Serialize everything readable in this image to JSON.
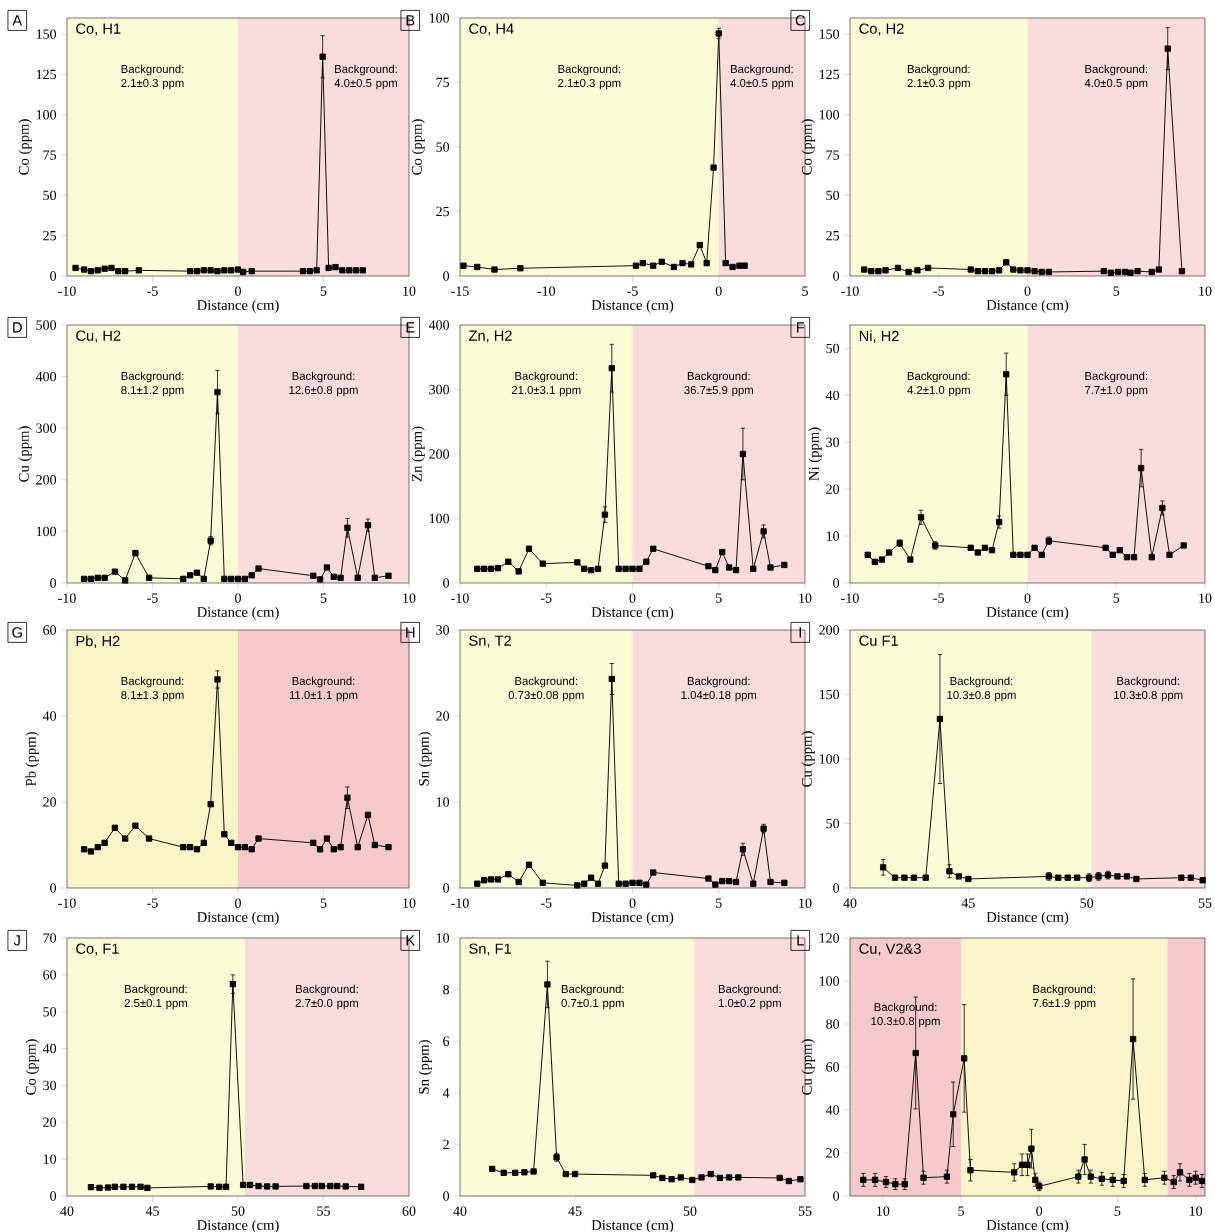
{
  "chart_data": [
    {
      "type": "line",
      "title": "Co, H1",
      "xlabel": "Distance (cm)",
      "ylabel": "Co (ppm)",
      "annotations": [
        "A"
      ],
      "color": "#000000",
      "marker": "square",
      "xlim": [
        -10,
        10
      ],
      "ylim": [
        0,
        160
      ],
      "xticks": [
        -10,
        -5,
        0,
        5,
        10
      ],
      "yticks": [
        0,
        25,
        50,
        75,
        100,
        125,
        150
      ],
      "bands": [
        {
          "axis": "x",
          "from": -10,
          "to": 0,
          "label": "Background: 2.1±0.3 ppm",
          "color": "#fdfbd6"
        },
        {
          "axis": "x",
          "from": 0,
          "to": 10,
          "label": "Background: 4.0±0.5 ppm",
          "color": "#fadcdd"
        }
      ],
      "x": [
        -9.5,
        -9,
        -8.6,
        -8.2,
        -7.8,
        -7.4,
        -7,
        -6.6,
        -5.8,
        -2.8,
        -2.4,
        -2,
        -1.6,
        -1.2,
        -0.8,
        -0.4,
        0,
        0.3,
        0.8,
        3.8,
        4.2,
        4.6,
        4.95,
        5.3,
        5.7,
        6.1,
        6.5,
        6.9,
        7.3
      ],
      "values": [
        5,
        4,
        3,
        3.5,
        4.5,
        5,
        3,
        3,
        3.5,
        3,
        3,
        3.5,
        3.5,
        3,
        3.5,
        3.5,
        4,
        2.5,
        3,
        3,
        3,
        3.5,
        136,
        5,
        5.5,
        3.5,
        3.5,
        3.5,
        3.5
      ],
      "errors": [
        null,
        null,
        null,
        null,
        null,
        null,
        null,
        null,
        null,
        null,
        null,
        null,
        null,
        null,
        null,
        null,
        null,
        null,
        null,
        null,
        null,
        null,
        13,
        null,
        null,
        null,
        null,
        null,
        null
      ]
    },
    {
      "type": "line",
      "title": "Co, H4",
      "xlabel": "Distance (cm)",
      "ylabel": "Co (ppm)",
      "annotations": [
        "B"
      ],
      "color": "#000000",
      "marker": "square",
      "xlim": [
        -15,
        5
      ],
      "ylim": [
        0,
        100
      ],
      "xticks": [
        -15,
        -10,
        -5,
        0,
        5
      ],
      "yticks": [
        0,
        25,
        50,
        75,
        100
      ],
      "bands": [
        {
          "axis": "x",
          "from": -15,
          "to": 0,
          "label": "Background: 2.1±0.3 ppm",
          "color": "#fdfbd6"
        },
        {
          "axis": "x",
          "from": 0,
          "to": 5,
          "label": "Background: 4.0±0.5 ppm",
          "color": "#fadcdd"
        }
      ],
      "x": [
        -14.8,
        -14,
        -13,
        -11.5,
        -4.8,
        -4.4,
        -3.8,
        -3.3,
        -2.6,
        -2.1,
        -1.6,
        -1.1,
        -0.7,
        -0.3,
        0,
        0.4,
        0.8,
        1.2,
        1.5
      ],
      "values": [
        4,
        3.5,
        2.5,
        3,
        4,
        5,
        4,
        5.5,
        3.5,
        5,
        4.5,
        12,
        5,
        42,
        94,
        5,
        3.5,
        4,
        4
      ],
      "errors": [
        null,
        null,
        null,
        null,
        null,
        null,
        null,
        null,
        null,
        null,
        null,
        null,
        null,
        null,
        2,
        null,
        null,
        null,
        null
      ]
    },
    {
      "type": "line",
      "title": "Co, H2",
      "xlabel": "Distance (cm)",
      "ylabel": "Co (ppm)",
      "annotations": [
        "C"
      ],
      "color": "#000000",
      "marker": "square",
      "xlim": [
        -10,
        10
      ],
      "ylim": [
        0,
        160
      ],
      "xticks": [
        -10,
        -5,
        0,
        5,
        10
      ],
      "yticks": [
        0,
        25,
        50,
        75,
        100,
        125,
        150
      ],
      "bands": [
        {
          "axis": "x",
          "from": -10,
          "to": 0,
          "label": "Background: 2.1±0.3 ppm",
          "color": "#fdfbd6"
        },
        {
          "axis": "x",
          "from": 0,
          "to": 10,
          "label": "Background: 4.0±0.5 ppm",
          "color": "#fadcdd"
        }
      ],
      "x": [
        -9.2,
        -8.8,
        -8.4,
        -8,
        -7.3,
        -6.7,
        -6.2,
        -5.6,
        -3.2,
        -2.8,
        -2.4,
        -2,
        -1.6,
        -1.2,
        -0.8,
        -0.4,
        0,
        0.4,
        0.8,
        1.2,
        4.3,
        4.7,
        5.1,
        5.5,
        5.8,
        6.2,
        7,
        7.4,
        7.9,
        8.7
      ],
      "values": [
        4,
        3,
        3,
        3.5,
        5,
        2.5,
        3.5,
        5,
        4,
        3,
        3,
        3,
        3.5,
        8.5,
        4,
        3.5,
        3.5,
        3,
        2.5,
        2.5,
        3,
        2,
        2.5,
        2.5,
        2,
        3,
        2.5,
        4,
        141,
        3
      ],
      "errors": [
        null,
        null,
        null,
        null,
        null,
        null,
        null,
        null,
        null,
        null,
        null,
        null,
        null,
        null,
        null,
        null,
        null,
        null,
        null,
        null,
        null,
        null,
        null,
        null,
        null,
        null,
        null,
        null,
        13,
        null
      ]
    },
    {
      "type": "line",
      "title": "Cu, H2",
      "xlabel": "Distance (cm)",
      "ylabel": "Cu (ppm)",
      "annotations": [
        "D"
      ],
      "color": "#000000",
      "marker": "square",
      "xlim": [
        -10,
        10
      ],
      "ylim": [
        0,
        500
      ],
      "xticks": [
        -10,
        -5,
        0,
        5,
        10
      ],
      "yticks": [
        0,
        100,
        200,
        300,
        400,
        500
      ],
      "bands": [
        {
          "axis": "x",
          "from": -10,
          "to": 0,
          "label": "Background: 8.1±1.2 ppm",
          "color": "#fdfbd6"
        },
        {
          "axis": "x",
          "from": 0,
          "to": 10,
          "label": "Background: 12.6±0.8 ppm",
          "color": "#fadcdd"
        }
      ],
      "x": [
        -9,
        -8.6,
        -8.2,
        -7.8,
        -7.2,
        -6.6,
        -6,
        -5.2,
        -3.2,
        -2.8,
        -2.4,
        -2,
        -1.6,
        -1.2,
        -0.8,
        -0.4,
        0,
        0.4,
        0.8,
        1.2,
        4.4,
        4.8,
        5.2,
        5.6,
        6,
        6.4,
        7,
        7.6,
        8,
        8.8
      ],
      "values": [
        8,
        8,
        10,
        10,
        22,
        5,
        58,
        10,
        8,
        15,
        20,
        8,
        82,
        370,
        8,
        8,
        8,
        8,
        15,
        28,
        14,
        7,
        30,
        12,
        10,
        107,
        10,
        112,
        10,
        14
      ],
      "errors": [
        null,
        null,
        null,
        null,
        null,
        null,
        5,
        null,
        null,
        null,
        null,
        null,
        8,
        42,
        null,
        null,
        null,
        null,
        null,
        null,
        null,
        null,
        null,
        null,
        null,
        18,
        null,
        12,
        null,
        null
      ]
    },
    {
      "type": "line",
      "title": "Zn, H2",
      "xlabel": "Distance (cm)",
      "ylabel": "Zn (ppm)",
      "annotations": [
        "E"
      ],
      "color": "#000000",
      "marker": "square",
      "xlim": [
        -10,
        10
      ],
      "ylim": [
        0,
        400
      ],
      "xticks": [
        -10,
        -5,
        0,
        5,
        10
      ],
      "yticks": [
        0,
        100,
        200,
        300,
        400
      ],
      "bands": [
        {
          "axis": "x",
          "from": -10,
          "to": 0,
          "label": "Background: 21.0±3.1 ppm",
          "color": "#fdfbd6"
        },
        {
          "axis": "x",
          "from": 0,
          "to": 10,
          "label": "Background: 36.7±5.9 ppm",
          "color": "#fadcdd"
        }
      ],
      "x": [
        -9,
        -8.6,
        -8.2,
        -7.8,
        -7.2,
        -6.6,
        -6,
        -5.2,
        -3.2,
        -2.8,
        -2.4,
        -2,
        -1.6,
        -1.2,
        -0.8,
        -0.4,
        0,
        0.4,
        0.8,
        1.2,
        4.4,
        4.8,
        5.2,
        5.6,
        6,
        6.4,
        7,
        7.6,
        8,
        8.8
      ],
      "values": [
        22,
        22,
        22,
        23,
        33,
        18,
        53,
        30,
        32,
        22,
        20,
        22,
        106,
        333,
        22,
        22,
        22,
        22,
        33,
        53,
        26,
        20,
        48,
        24,
        20,
        200,
        22,
        80,
        24,
        28
      ],
      "errors": [
        null,
        null,
        null,
        null,
        null,
        null,
        4,
        null,
        null,
        null,
        null,
        null,
        12,
        37,
        null,
        null,
        null,
        null,
        null,
        null,
        null,
        null,
        null,
        null,
        null,
        40,
        null,
        10,
        null,
        null
      ]
    },
    {
      "type": "line",
      "title": "Ni, H2",
      "xlabel": "Distance (cm)",
      "ylabel": "Ni (ppm)",
      "annotations": [
        "F"
      ],
      "color": "#000000",
      "marker": "square",
      "xlim": [
        -10,
        10
      ],
      "ylim": [
        0,
        55
      ],
      "xticks": [
        -10,
        -5,
        0,
        5,
        10
      ],
      "yticks": [
        0,
        10,
        20,
        30,
        40,
        50
      ],
      "bands": [
        {
          "axis": "x",
          "from": -10,
          "to": 0,
          "label": "Background: 4.2±1.0 ppm",
          "color": "#fdfbd6"
        },
        {
          "axis": "x",
          "from": 0,
          "to": 10,
          "label": "Background: 7.7±1.0 ppm",
          "color": "#fadcdd"
        }
      ],
      "x": [
        -9,
        -8.6,
        -8.2,
        -7.8,
        -7.2,
        -6.6,
        -6,
        -5.2,
        -3.2,
        -2.8,
        -2.4,
        -2,
        -1.6,
        -1.2,
        -0.8,
        -0.4,
        0,
        0.4,
        0.8,
        1.2,
        4.4,
        4.8,
        5.2,
        5.6,
        6,
        6.4,
        7,
        7.6,
        8,
        8.8
      ],
      "values": [
        6,
        4.5,
        5,
        6.5,
        8.5,
        5,
        14,
        8,
        7.5,
        6.5,
        7.5,
        7,
        13,
        44.5,
        6,
        6,
        6,
        7.5,
        6,
        9,
        7.5,
        6,
        7,
        5.5,
        5.5,
        24.5,
        5.5,
        16,
        6,
        8
      ],
      "errors": [
        null,
        null,
        null,
        null,
        0.7,
        null,
        1.5,
        0.8,
        null,
        null,
        null,
        null,
        1.3,
        4.5,
        null,
        null,
        null,
        null,
        null,
        0.8,
        null,
        null,
        null,
        null,
        null,
        4,
        null,
        1.5,
        null,
        null
      ]
    },
    {
      "type": "line",
      "title": "Pb, H2",
      "xlabel": "Distance (cm)",
      "ylabel": "Pb (ppm)",
      "annotations": [
        "G"
      ],
      "color": "#000000",
      "marker": "square",
      "xlim": [
        -10,
        10
      ],
      "ylim": [
        0,
        60
      ],
      "xticks": [
        -10,
        -5,
        0,
        5,
        10
      ],
      "yticks": [
        0,
        20,
        40,
        60
      ],
      "bands": [
        {
          "axis": "x",
          "from": -10,
          "to": 0,
          "label": "Background: 8.1±1.3 ppm",
          "color": "#faf5c6"
        },
        {
          "axis": "x",
          "from": 0,
          "to": 10,
          "label": "Background: 11.0±1.1 ppm",
          "color": "#f6c9cc"
        }
      ],
      "x": [
        -9,
        -8.6,
        -8.2,
        -7.8,
        -7.2,
        -6.6,
        -6,
        -5.2,
        -3.2,
        -2.8,
        -2.4,
        -2,
        -1.6,
        -1.2,
        -0.8,
        -0.4,
        0,
        0.4,
        0.8,
        1.2,
        4.4,
        4.8,
        5.2,
        5.6,
        6,
        6.4,
        7,
        7.6,
        8,
        8.8
      ],
      "values": [
        9,
        8.5,
        9.5,
        10.5,
        14,
        11.5,
        14.5,
        11.5,
        9.5,
        9.5,
        9,
        10.5,
        19.5,
        48.5,
        12.5,
        10.5,
        9.5,
        9.5,
        9,
        11.5,
        10.5,
        9,
        11.5,
        9,
        9.5,
        21,
        9.5,
        17,
        10,
        9.5
      ],
      "errors": [
        null,
        null,
        null,
        null,
        null,
        null,
        null,
        null,
        null,
        null,
        null,
        null,
        null,
        2,
        null,
        null,
        null,
        null,
        null,
        null,
        null,
        null,
        null,
        null,
        null,
        2.5,
        null,
        null,
        null,
        null
      ]
    },
    {
      "type": "line",
      "title": "Sn, T2",
      "xlabel": "Distance (cm)",
      "ylabel": "Sn (ppm)",
      "annotations": [
        "H"
      ],
      "color": "#000000",
      "marker": "square",
      "xlim": [
        -10,
        10
      ],
      "ylim": [
        0,
        30
      ],
      "xticks": [
        -10,
        -5,
        0,
        5,
        10
      ],
      "yticks": [
        0,
        10,
        20,
        30
      ],
      "bands": [
        {
          "axis": "x",
          "from": -10,
          "to": 0,
          "label": "Background: 0.73±0.08 ppm",
          "color": "#fdfbd6"
        },
        {
          "axis": "x",
          "from": 0,
          "to": 10,
          "label": "Background: 1.04±0.18 ppm",
          "color": "#fadcdd"
        }
      ],
      "x": [
        -9,
        -8.6,
        -8.2,
        -7.8,
        -7.2,
        -6.6,
        -6,
        -5.2,
        -3.2,
        -2.8,
        -2.4,
        -2,
        -1.6,
        -1.2,
        -0.8,
        -0.4,
        0,
        0.4,
        0.8,
        1.2,
        4.4,
        4.8,
        5.2,
        5.6,
        6,
        6.4,
        7,
        7.6,
        8,
        8.8
      ],
      "values": [
        0.5,
        0.9,
        1,
        1,
        1.6,
        0.7,
        2.7,
        0.6,
        0.3,
        0.5,
        1.2,
        0.5,
        2.6,
        24.3,
        0.5,
        0.5,
        0.6,
        0.6,
        0.4,
        1.8,
        1.1,
        0.4,
        0.8,
        0.8,
        0.7,
        4.5,
        0.5,
        6.9,
        0.7,
        0.6
      ],
      "errors": [
        null,
        null,
        null,
        null,
        null,
        null,
        null,
        null,
        null,
        null,
        null,
        null,
        null,
        1.8,
        null,
        null,
        null,
        null,
        null,
        null,
        null,
        null,
        null,
        null,
        null,
        0.7,
        null,
        0.5,
        null,
        null
      ]
    },
    {
      "type": "line",
      "title": "Cu F1",
      "xlabel": "Distance (cm)",
      "ylabel": "Cu (ppm)",
      "annotations": [
        "I"
      ],
      "color": "#000000",
      "marker": "square",
      "xlim": [
        40,
        55
      ],
      "ylim": [
        0,
        200
      ],
      "xticks": [
        40,
        45,
        50,
        55
      ],
      "yticks": [
        0,
        50,
        100,
        150,
        200
      ],
      "bands": [
        {
          "axis": "x",
          "from": 40,
          "to": 50.2,
          "label": "Background: 10.3±0.8 ppm",
          "color": "#fdfbd6"
        },
        {
          "axis": "x",
          "from": 50.2,
          "to": 55,
          "label": "Background: 10.3±0.8 ppm",
          "color": "#fadcdd"
        }
      ],
      "x": [
        41.4,
        41.9,
        42.3,
        42.7,
        43.2,
        43.8,
        44.2,
        44.6,
        45,
        48.4,
        48.8,
        49.2,
        49.6,
        50.1,
        50.5,
        50.9,
        51.3,
        51.7,
        52.1,
        54,
        54.4,
        54.9
      ],
      "values": [
        16,
        8,
        8,
        8,
        8,
        131,
        13,
        9,
        7,
        9,
        8,
        8,
        8,
        8,
        9,
        10,
        9,
        9,
        7,
        8,
        8,
        6
      ],
      "errors": [
        6,
        null,
        null,
        null,
        null,
        50,
        5,
        null,
        null,
        3,
        null,
        null,
        null,
        3,
        3,
        3,
        null,
        null,
        null,
        null,
        null,
        null
      ]
    },
    {
      "type": "line",
      "title": "Co, F1",
      "xlabel": "Distance (cm)",
      "ylabel": "Co (ppm)",
      "annotations": [
        "J"
      ],
      "color": "#000000",
      "marker": "square",
      "xlim": [
        40,
        60
      ],
      "ylim": [
        0,
        70
      ],
      "xticks": [
        40,
        45,
        50,
        55,
        60
      ],
      "yticks": [
        0,
        10,
        20,
        30,
        40,
        50,
        60,
        70
      ],
      "bands": [
        {
          "axis": "x",
          "from": 40,
          "to": 50.4,
          "label": "Background: 2.5±0.1 ppm",
          "color": "#fdfbd6"
        },
        {
          "axis": "x",
          "from": 50.4,
          "to": 60,
          "label": "Background: 2.7±0.0 ppm",
          "color": "#fadcdd"
        }
      ],
      "x": [
        41.4,
        41.9,
        42.4,
        42.8,
        43.3,
        43.8,
        44.3,
        44.7,
        48.4,
        48.9,
        49.3,
        49.7,
        50.3,
        50.7,
        51.2,
        51.7,
        52.2,
        54,
        54.5,
        54.9,
        55.4,
        55.8,
        56.3,
        57.2
      ],
      "values": [
        2.4,
        2.2,
        2.3,
        2.5,
        2.5,
        2.5,
        2.5,
        2.2,
        2.6,
        2.5,
        2.5,
        57.5,
        3,
        3,
        2.7,
        2.6,
        2.6,
        2.7,
        2.7,
        2.7,
        2.7,
        2.7,
        2.6,
        2.5
      ],
      "errors": [
        null,
        null,
        null,
        null,
        null,
        null,
        null,
        null,
        null,
        null,
        null,
        2.5,
        null,
        null,
        null,
        null,
        null,
        null,
        null,
        null,
        null,
        null,
        null,
        null
      ]
    },
    {
      "type": "line",
      "title": "Sn, F1",
      "xlabel": "Distance (cm)",
      "ylabel": "Sn (ppm)",
      "annotations": [
        "K"
      ],
      "color": "#000000",
      "marker": "square",
      "xlim": [
        40,
        55
      ],
      "ylim": [
        0,
        10
      ],
      "xticks": [
        40,
        45,
        50,
        55
      ],
      "yticks": [
        0,
        2,
        4,
        6,
        8,
        10
      ],
      "bands": [
        {
          "axis": "x",
          "from": 40,
          "to": 50.2,
          "label": "Background: 0.7±0.1 ppm",
          "color": "#fdfbd6"
        },
        {
          "axis": "x",
          "from": 50.2,
          "to": 55,
          "label": "Background: 1.0±0.2 ppm",
          "color": "#fadcdd"
        }
      ],
      "x": [
        41.4,
        41.9,
        42.4,
        42.8,
        43.2,
        43.8,
        44.2,
        44.6,
        45,
        48.4,
        48.8,
        49.2,
        49.6,
        50.1,
        50.5,
        50.9,
        51.3,
        51.7,
        52.1,
        53.9,
        54.3,
        54.8
      ],
      "values": [
        1.05,
        0.9,
        0.9,
        0.92,
        0.95,
        8.2,
        1.5,
        0.85,
        0.85,
        0.8,
        0.7,
        0.65,
        0.72,
        0.62,
        0.72,
        0.85,
        0.7,
        0.72,
        0.72,
        0.7,
        0.58,
        0.65
      ],
      "errors": [
        null,
        null,
        null,
        null,
        null,
        0.9,
        0.15,
        null,
        null,
        null,
        null,
        null,
        null,
        null,
        null,
        null,
        null,
        null,
        null,
        null,
        null,
        null
      ]
    },
    {
      "type": "line",
      "title": "Cu, V2&3",
      "xlabel": "Distance (cm)",
      "ylabel": "Cu (ppm)",
      "annotations": [
        "L"
      ],
      "color": "#000000",
      "marker": "square",
      "xlim": [
        -12.1,
        10.6
      ],
      "ylim": [
        0,
        120
      ],
      "xticks": [
        {
          "value": -10,
          "label": "10"
        },
        {
          "value": -5,
          "label": "5"
        },
        0,
        5,
        10
      ],
      "yticks": [
        0,
        20,
        40,
        60,
        80,
        100,
        120
      ],
      "bands": [
        {
          "axis": "x",
          "from": -12.1,
          "to": -5,
          "label": "Background: 10.3±0.8 ppm",
          "color": "#f6c9cc"
        },
        {
          "axis": "x",
          "from": -5,
          "to": 8.2,
          "label": "Background: 7.6±1.9 ppm",
          "color": "#faf5c8"
        },
        {
          "axis": "x",
          "from": 8.2,
          "to": 10.6,
          "color": "#f6c9cc"
        }
      ],
      "x": [
        -11.25,
        -10.5,
        -9.8,
        -9.2,
        -8.6,
        -7.9,
        -7.4,
        -5.9,
        -5.5,
        -4.8,
        -4.4,
        -1.6,
        -1.1,
        -0.75,
        -0.5,
        -0.25,
        0,
        2.5,
        2.9,
        3.3,
        4,
        4.7,
        5.4,
        6,
        6.75,
        8,
        8.6,
        9,
        9.6,
        10,
        10.4
      ],
      "values": [
        7.5,
        7.5,
        6.5,
        5.5,
        5.5,
        66.5,
        8.5,
        9,
        38,
        64,
        12,
        11,
        14.5,
        14.5,
        22,
        7.5,
        4.5,
        9,
        17,
        9,
        8,
        7.5,
        7,
        73,
        7.5,
        8.5,
        6.5,
        11,
        7.5,
        8.5,
        7
      ],
      "errors": [
        3,
        3,
        2.5,
        2.5,
        2.5,
        26,
        3,
        3,
        15,
        25,
        5,
        4,
        5,
        5,
        9,
        3,
        2,
        3,
        7,
        3,
        3,
        3,
        3,
        28,
        3,
        3,
        3,
        4,
        3,
        3,
        3
      ]
    }
  ]
}
